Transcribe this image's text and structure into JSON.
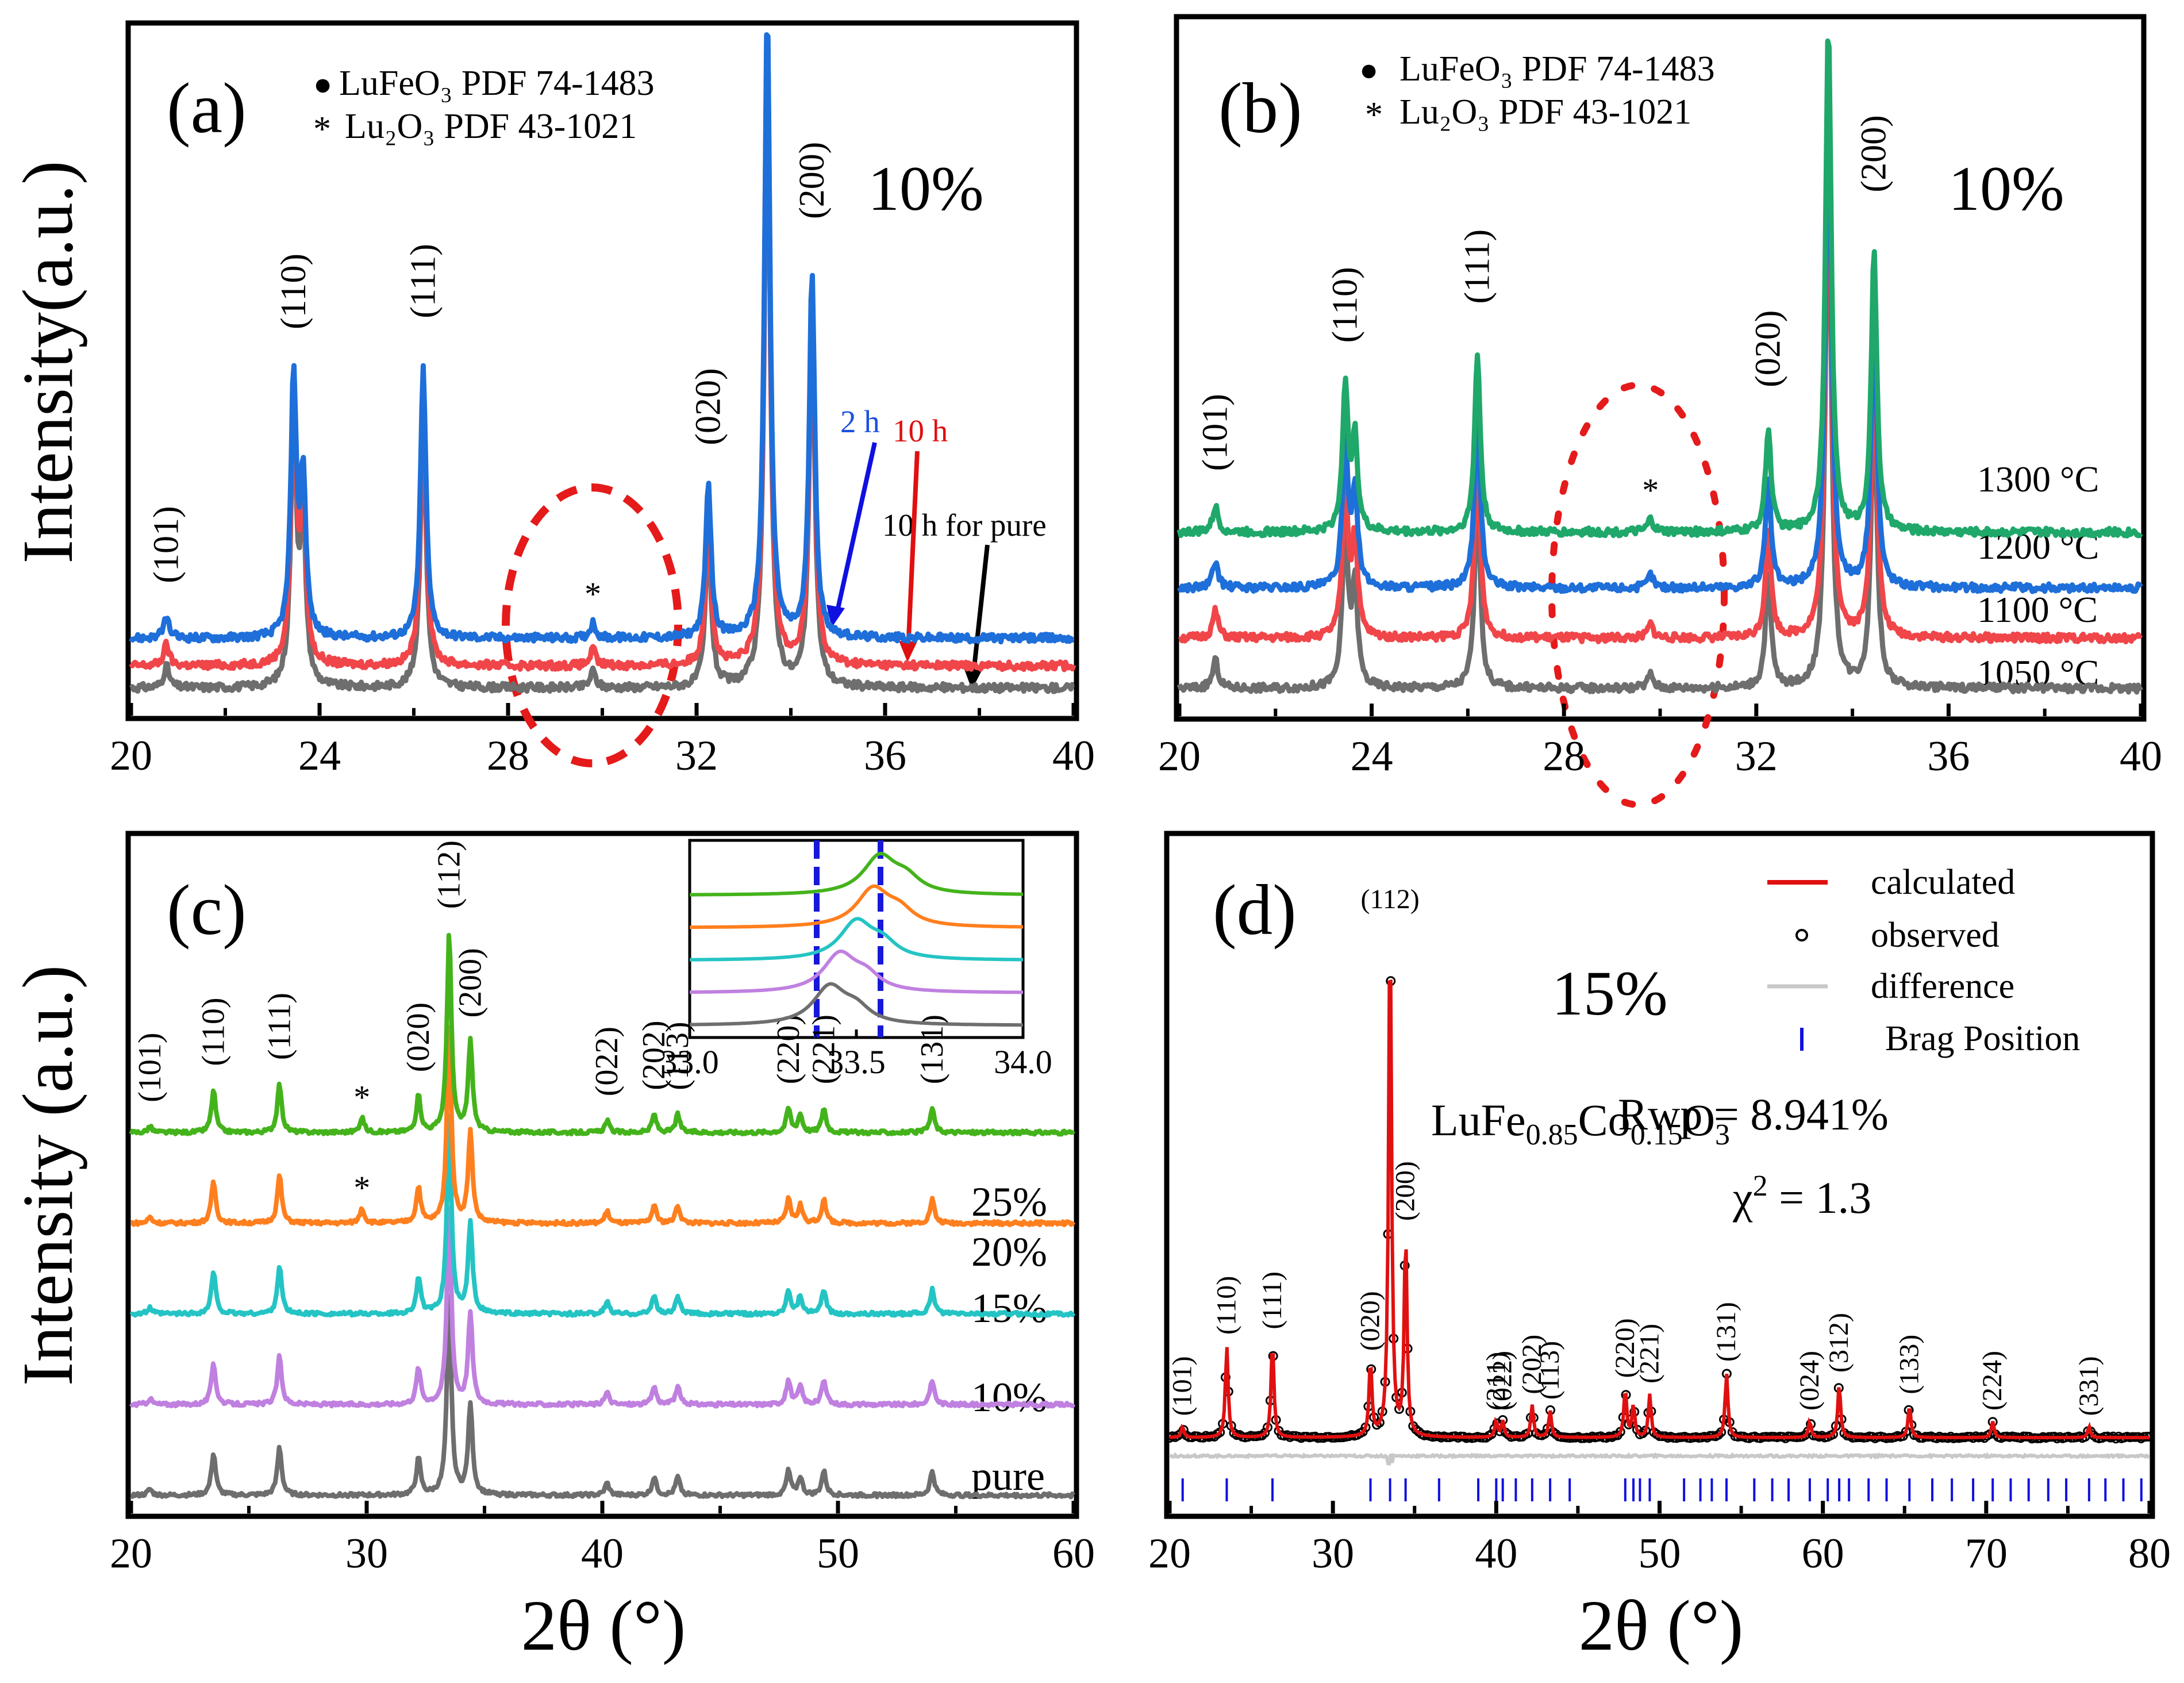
{
  "y_axis_label": "Intensity(a.u.)",
  "y_axis_label_c": "Intensity (a.u.)",
  "x_axis_label": "2θ (°)",
  "chart_data": [
    {
      "id": "a",
      "type": "line",
      "panel_label": "(a)",
      "xlim": [
        20,
        40
      ],
      "xticks": [
        20,
        24,
        28,
        32,
        36,
        40
      ],
      "legend": [
        {
          "marker": "●",
          "text": "LuFeO₃ PDF 74-1483"
        },
        {
          "marker": "*",
          "text": "Lu₂O₃  PDF 43-1021"
        }
      ],
      "concentration": "10%",
      "series": [
        {
          "name": "10 h for pure",
          "color": "#6e6e6e",
          "baseline": 0.05
        },
        {
          "name": "10 h",
          "color": "#f0464a",
          "baseline": 0.09
        },
        {
          "name": "2 h",
          "color": "#1e6fd9",
          "baseline": 0.14
        }
      ],
      "peaks": [
        {
          "x": 20.75,
          "h": 0.04,
          "label": "(101)"
        },
        {
          "x": 23.45,
          "h": 0.5,
          "label": "(110)"
        },
        {
          "x": 23.65,
          "h": 0.3,
          "label": ""
        },
        {
          "x": 26.2,
          "h": 0.52,
          "label": "(111)"
        },
        {
          "x": 29.8,
          "h": 0.03,
          "label": "*"
        },
        {
          "x": 32.25,
          "h": 0.29,
          "label": "(020)"
        },
        {
          "x": 33.5,
          "h": 1.2,
          "label": ""
        },
        {
          "x": 34.45,
          "h": 0.7,
          "label": "(200)"
        }
      ],
      "annotations": [
        "2 h",
        "10 h",
        "10 h for pure"
      ],
      "highlight": {
        "x": 29.8,
        "note": "Lu₂O₃ impurity region"
      }
    },
    {
      "id": "b",
      "type": "line",
      "panel_label": "(b)",
      "xlim": [
        20,
        40
      ],
      "xticks": [
        20,
        24,
        28,
        32,
        36,
        40
      ],
      "legend": [
        {
          "marker": "●",
          "text": "LuFeO₃ PDF 74-1483"
        },
        {
          "marker": "*",
          "text": "Lu₂O₃  PDF 43-1021"
        }
      ],
      "concentration": "10%",
      "series": [
        {
          "name": "1050 °C",
          "color": "#6e6e6e",
          "baseline": 0.05
        },
        {
          "name": "1100 °C",
          "color": "#f0464a",
          "baseline": 0.14
        },
        {
          "name": "1200 °C",
          "color": "#1e6fd9",
          "baseline": 0.23
        },
        {
          "name": "1300 °C",
          "color": "#1fa86a",
          "baseline": 0.33
        }
      ],
      "peaks": [
        {
          "x": 20.75,
          "h": 0.05,
          "label": "(101)"
        },
        {
          "x": 23.45,
          "h": 0.28,
          "label": "(110)"
        },
        {
          "x": 23.65,
          "h": 0.18,
          "label": ""
        },
        {
          "x": 26.2,
          "h": 0.35,
          "label": "(111)"
        },
        {
          "x": 29.8,
          "h": 0.025,
          "label": "*"
        },
        {
          "x": 32.25,
          "h": 0.2,
          "label": "(020)"
        },
        {
          "x": 33.5,
          "h": 1.0,
          "label": ""
        },
        {
          "x": 34.45,
          "h": 0.55,
          "label": "(200)"
        }
      ]
    },
    {
      "id": "c",
      "type": "line",
      "panel_label": "(c)",
      "xlim": [
        20,
        60
      ],
      "xticks": [
        20,
        30,
        40,
        50,
        60
      ],
      "series": [
        {
          "name": "pure",
          "color": "#6e6e6e",
          "baseline": 0.03
        },
        {
          "name": "10%",
          "color": "#c080e0",
          "baseline": 0.18
        },
        {
          "name": "15%",
          "color": "#25c4c4",
          "baseline": 0.33
        },
        {
          "name": "20%",
          "color": "#ff7f1e",
          "baseline": 0.48
        },
        {
          "name": "25%",
          "color": "#44b31b",
          "baseline": 0.63
        }
      ],
      "peaks": [
        {
          "x": 20.8,
          "h": 0.01,
          "label": "(101)"
        },
        {
          "x": 23.5,
          "h": 0.07,
          "label": "(110)"
        },
        {
          "x": 26.3,
          "h": 0.08,
          "label": "(111)"
        },
        {
          "x": 29.8,
          "h": 0.0,
          "label": "*"
        },
        {
          "x": 32.2,
          "h": 0.06,
          "label": "(020)"
        },
        {
          "x": 33.5,
          "h": 0.33,
          "label": "(112)"
        },
        {
          "x": 34.4,
          "h": 0.15,
          "label": "(200)"
        },
        {
          "x": 40.2,
          "h": 0.02,
          "label": "(022)"
        },
        {
          "x": 42.2,
          "h": 0.03,
          "label": "(202)"
        },
        {
          "x": 43.2,
          "h": 0.03,
          "label": "(113)"
        },
        {
          "x": 47.9,
          "h": 0.04,
          "label": "(220)"
        },
        {
          "x": 48.4,
          "h": 0.03,
          "label": ""
        },
        {
          "x": 49.4,
          "h": 0.04,
          "label": "(221)"
        },
        {
          "x": 54.0,
          "h": 0.04,
          "label": "(131)"
        }
      ],
      "inset": {
        "xlim": [
          33.0,
          34.0
        ],
        "xticks": [
          33.0,
          33.5,
          34.0
        ],
        "tick_labels": [
          "33.0",
          "33.5",
          "34.0"
        ],
        "guide_lines_x": [
          33.38,
          33.57
        ],
        "peak_positions": [
          {
            "name": "pure",
            "center": 33.42
          },
          {
            "name": "10%",
            "center": 33.45
          },
          {
            "name": "15%",
            "center": 33.5
          },
          {
            "name": "20%",
            "center": 33.55
          },
          {
            "name": "25%",
            "center": 33.57
          }
        ]
      }
    },
    {
      "id": "d",
      "type": "scatter",
      "panel_label": "(d)",
      "xlim": [
        20,
        80
      ],
      "xticks": [
        20,
        30,
        40,
        50,
        60,
        70,
        80
      ],
      "concentration": "15%",
      "formula": "LuFe0.85Co0.15O3",
      "rwp": "Rwp = 8.941%",
      "chi2": "χ² = 1.3",
      "legend": [
        "calculated",
        "observed",
        "difference",
        "Brag Position"
      ],
      "colors": {
        "calculated": "#e01010",
        "observed": "#000000",
        "difference": "#c8c8c8",
        "bragg": "#1010e0"
      },
      "peaks": [
        {
          "x": 20.8,
          "h": 0.02,
          "label": "(101)"
        },
        {
          "x": 23.5,
          "h": 0.17,
          "label": "(110)"
        },
        {
          "x": 26.3,
          "h": 0.18,
          "label": "(111)"
        },
        {
          "x": 32.3,
          "h": 0.14,
          "label": "(020)"
        },
        {
          "x": 33.5,
          "h": 0.99,
          "label": "(112)"
        },
        {
          "x": 34.45,
          "h": 0.38,
          "label": "(200)"
        },
        {
          "x": 40.0,
          "h": 0.03,
          "label": "(211)"
        },
        {
          "x": 40.4,
          "h": 0.03,
          "label": "(022)"
        },
        {
          "x": 42.2,
          "h": 0.06,
          "label": "(202)"
        },
        {
          "x": 43.3,
          "h": 0.05,
          "label": "(113)"
        },
        {
          "x": 47.9,
          "h": 0.09,
          "label": "(220)"
        },
        {
          "x": 48.4,
          "h": 0.06,
          "label": ""
        },
        {
          "x": 49.4,
          "h": 0.08,
          "label": "(221)"
        },
        {
          "x": 54.1,
          "h": 0.12,
          "label": "(131)"
        },
        {
          "x": 59.2,
          "h": 0.03,
          "label": "(024)"
        },
        {
          "x": 61.0,
          "h": 0.1,
          "label": "(312)"
        },
        {
          "x": 65.3,
          "h": 0.06,
          "label": "(133)"
        },
        {
          "x": 70.4,
          "h": 0.03,
          "label": "(224)"
        },
        {
          "x": 76.3,
          "h": 0.02,
          "label": "(331)"
        }
      ],
      "bragg_positions": [
        20.8,
        23.5,
        26.3,
        32.3,
        33.5,
        34.45,
        36.5,
        38.9,
        40.0,
        40.4,
        41.2,
        42.2,
        43.3,
        44.5,
        47.9,
        48.4,
        48.8,
        49.4,
        51.5,
        52.5,
        53.2,
        54.1,
        55.8,
        56.9,
        57.9,
        59.2,
        60.3,
        61.0,
        61.6,
        62.8,
        63.9,
        65.3,
        66.7,
        67.9,
        69.2,
        70.4,
        71.5,
        72.6,
        73.8,
        74.9,
        76.3,
        77.3,
        78.4,
        79.5
      ]
    }
  ]
}
